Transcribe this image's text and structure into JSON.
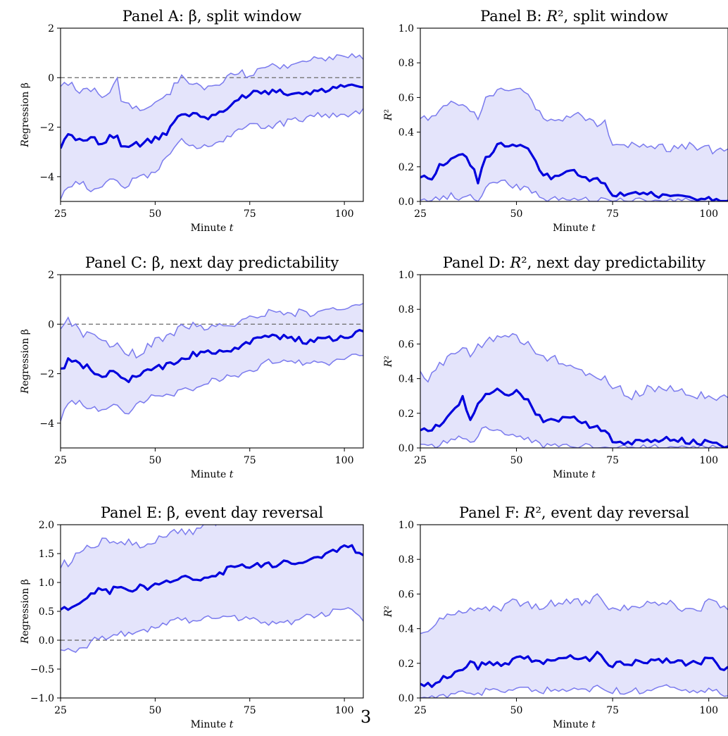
{
  "page_number": "3",
  "colors": {
    "mean_line": "#0000dd",
    "band_line": "#7a7aee",
    "band_fill": "#e4e4fb",
    "zero_line": "#777777"
  },
  "chart_data": [
    {
      "id": "A",
      "type": "line",
      "title": "Panel A: β, split window",
      "xlabel": "Minute t",
      "ylabel": "Regression β",
      "xlim": [
        25,
        105
      ],
      "ylim": [
        -5,
        2
      ],
      "xticks": [
        25,
        50,
        75,
        100
      ],
      "xtick_labels": [
        "25",
        "50",
        "75",
        "100"
      ],
      "yticks": [
        -4,
        -2,
        0,
        2
      ],
      "ytick_labels": [
        "−4",
        "−2",
        "0",
        "2"
      ],
      "zero_line": true,
      "knots": {
        "x": [
          25,
          27,
          30,
          33,
          36,
          38,
          40,
          41,
          45,
          50,
          53,
          57,
          60,
          65,
          70,
          75,
          80,
          85,
          90,
          95,
          100,
          105
        ],
        "mean": [
          -2.8,
          -2.3,
          -2.5,
          -2.4,
          -2.7,
          -2.3,
          -2.4,
          -2.8,
          -2.7,
          -2.5,
          -2.2,
          -1.5,
          -1.5,
          -1.6,
          -1.1,
          -0.6,
          -0.6,
          -0.6,
          -0.6,
          -0.5,
          -0.4,
          -0.3
        ],
        "upper": [
          -0.3,
          -0.2,
          -0.5,
          -0.4,
          -0.7,
          -0.5,
          0.0,
          -1.0,
          -1.3,
          -1.1,
          -0.8,
          0.1,
          -0.2,
          -0.4,
          0.2,
          0.1,
          0.5,
          0.4,
          0.7,
          0.8,
          0.8,
          0.9
        ],
        "lower": [
          -4.9,
          -4.3,
          -4.2,
          -4.5,
          -4.4,
          -4.1,
          -4.2,
          -4.5,
          -4.1,
          -3.8,
          -3.2,
          -2.6,
          -2.8,
          -2.8,
          -2.4,
          -1.8,
          -2.0,
          -1.8,
          -1.6,
          -1.5,
          -1.6,
          -1.3
        ]
      }
    },
    {
      "id": "B",
      "type": "line",
      "title": "Panel B: R², split window",
      "xlabel": "Minute t",
      "ylabel": "R²",
      "xlim": [
        25,
        105
      ],
      "ylim": [
        0,
        1
      ],
      "xticks": [
        25,
        50,
        75,
        100
      ],
      "xtick_labels": [
        "25",
        "50",
        "75",
        "100"
      ],
      "yticks": [
        0,
        0.2,
        0.4,
        0.6,
        0.8,
        1.0
      ],
      "ytick_labels": [
        "0.0",
        "0.2",
        "0.4",
        "0.6",
        "0.8",
        "1.0"
      ],
      "zero_line": false,
      "knots": {
        "x": [
          25,
          28,
          30,
          33,
          36,
          38,
          40,
          42,
          45,
          48,
          50,
          53,
          57,
          60,
          65,
          70,
          73,
          75,
          80,
          85,
          90,
          95,
          100,
          105
        ],
        "mean": [
          0.15,
          0.14,
          0.2,
          0.24,
          0.28,
          0.22,
          0.12,
          0.25,
          0.33,
          0.32,
          0.33,
          0.3,
          0.15,
          0.14,
          0.18,
          0.12,
          0.12,
          0.04,
          0.04,
          0.04,
          0.03,
          0.02,
          0.01,
          0.01
        ],
        "upper": [
          0.5,
          0.47,
          0.52,
          0.56,
          0.58,
          0.52,
          0.48,
          0.6,
          0.64,
          0.66,
          0.64,
          0.61,
          0.48,
          0.46,
          0.5,
          0.45,
          0.46,
          0.35,
          0.32,
          0.32,
          0.3,
          0.32,
          0.3,
          0.28
        ],
        "lower": [
          0.01,
          0.01,
          0.02,
          0.03,
          0.02,
          0.02,
          0.01,
          0.07,
          0.12,
          0.11,
          0.08,
          0.07,
          0.01,
          0.01,
          0.01,
          0.01,
          0.0,
          0.0,
          0.0,
          0.0,
          0.0,
          0.0,
          0.0,
          0.0
        ]
      }
    },
    {
      "id": "C",
      "type": "line",
      "title": "Panel C: β, next day predictability",
      "xlabel": "Minute t",
      "ylabel": "Regression β",
      "xlim": [
        25,
        105
      ],
      "ylim": [
        -5,
        2
      ],
      "xticks": [
        25,
        50,
        75,
        100
      ],
      "xtick_labels": [
        "25",
        "50",
        "75",
        "100"
      ],
      "yticks": [
        -4,
        -2,
        0,
        2
      ],
      "ytick_labels": [
        "−4",
        "−2",
        "0",
        "2"
      ],
      "zero_line": true,
      "knots": {
        "x": [
          25,
          27,
          30,
          33,
          36,
          38,
          40,
          42,
          45,
          50,
          55,
          60,
          65,
          70,
          75,
          80,
          85,
          90,
          95,
          100,
          105
        ],
        "mean": [
          -1.9,
          -1.5,
          -1.6,
          -1.8,
          -2.1,
          -1.9,
          -2.0,
          -2.3,
          -2.1,
          -1.8,
          -1.6,
          -1.2,
          -1.1,
          -1.0,
          -0.7,
          -0.5,
          -0.5,
          -0.7,
          -0.6,
          -0.5,
          -0.3
        ],
        "upper": [
          -0.1,
          0.2,
          -0.3,
          -0.5,
          -0.6,
          -0.8,
          -0.9,
          -1.1,
          -1.2,
          -0.7,
          -0.3,
          0.0,
          -0.2,
          0.0,
          0.3,
          0.5,
          0.5,
          0.4,
          0.5,
          0.6,
          0.7
        ],
        "lower": [
          -3.9,
          -3.1,
          -3.2,
          -3.4,
          -3.5,
          -3.3,
          -3.4,
          -3.6,
          -3.3,
          -2.9,
          -2.8,
          -2.6,
          -2.3,
          -2.1,
          -1.9,
          -1.5,
          -1.4,
          -1.6,
          -1.6,
          -1.4,
          -1.2
        ]
      }
    },
    {
      "id": "D",
      "type": "line",
      "title": "Panel D: R², next day predictability",
      "xlabel": "Minute t",
      "ylabel": "R²",
      "xlim": [
        25,
        105
      ],
      "ylim": [
        0,
        1
      ],
      "xticks": [
        25,
        50,
        75,
        100
      ],
      "xtick_labels": [
        "25",
        "50",
        "75",
        "100"
      ],
      "yticks": [
        0,
        0.2,
        0.4,
        0.6,
        0.8,
        1.0
      ],
      "ytick_labels": [
        "0.0",
        "0.2",
        "0.4",
        "0.6",
        "0.8",
        "1.0"
      ],
      "zero_line": false,
      "knots": {
        "x": [
          25,
          27,
          30,
          33,
          36,
          38,
          40,
          42,
          45,
          48,
          50,
          53,
          57,
          60,
          65,
          70,
          73,
          75,
          80,
          85,
          90,
          95,
          100,
          105
        ],
        "mean": [
          0.11,
          0.09,
          0.14,
          0.19,
          0.3,
          0.17,
          0.27,
          0.32,
          0.34,
          0.29,
          0.32,
          0.27,
          0.15,
          0.17,
          0.17,
          0.12,
          0.1,
          0.04,
          0.03,
          0.05,
          0.05,
          0.04,
          0.03,
          0.01
        ],
        "upper": [
          0.43,
          0.4,
          0.47,
          0.52,
          0.6,
          0.53,
          0.58,
          0.62,
          0.64,
          0.62,
          0.65,
          0.59,
          0.52,
          0.51,
          0.46,
          0.43,
          0.4,
          0.36,
          0.3,
          0.35,
          0.34,
          0.31,
          0.3,
          0.28
        ],
        "lower": [
          0.01,
          0.0,
          0.02,
          0.04,
          0.07,
          0.03,
          0.08,
          0.12,
          0.1,
          0.08,
          0.08,
          0.05,
          0.01,
          0.02,
          0.01,
          0.01,
          0.0,
          0.0,
          0.0,
          0.0,
          0.0,
          0.0,
          0.0,
          0.0
        ]
      }
    },
    {
      "id": "E",
      "type": "line",
      "title": "Panel E: β, event day reversal",
      "xlabel": "Minute t",
      "ylabel": "Regression β",
      "xlim": [
        25,
        105
      ],
      "ylim": [
        -1,
        2
      ],
      "xticks": [
        25,
        50,
        75,
        100
      ],
      "xtick_labels": [
        "25",
        "50",
        "75",
        "100"
      ],
      "yticks": [
        -1.0,
        -0.5,
        0.0,
        0.5,
        1.0,
        1.5,
        2.0
      ],
      "ytick_labels": [
        "−1.0",
        "−0.5",
        "0.0",
        "0.5",
        "1.0",
        "1.5",
        "2.0"
      ],
      "zero_line": true,
      "knots": {
        "x": [
          25,
          27,
          29,
          31,
          33,
          35,
          38,
          40,
          43,
          46,
          48,
          50,
          53,
          57,
          60,
          63,
          66,
          70,
          75,
          80,
          85,
          90,
          95,
          98,
          101,
          103,
          105
        ],
        "mean": [
          0.52,
          0.55,
          0.6,
          0.7,
          0.78,
          0.88,
          0.85,
          0.9,
          0.87,
          0.95,
          0.88,
          0.95,
          1.0,
          1.1,
          1.05,
          1.1,
          1.12,
          1.25,
          1.3,
          1.3,
          1.35,
          1.4,
          1.45,
          1.55,
          1.65,
          1.55,
          1.52
        ],
        "upper": [
          1.28,
          1.35,
          1.45,
          1.55,
          1.62,
          1.68,
          1.72,
          1.7,
          1.68,
          1.6,
          1.62,
          1.7,
          1.8,
          1.9,
          1.85,
          2.05,
          2.05,
          2.2,
          2.3,
          2.3,
          2.35,
          2.4,
          2.45,
          2.5,
          2.6,
          2.55,
          2.5
        ],
        "lower": [
          -0.22,
          -0.2,
          -0.22,
          -0.12,
          -0.05,
          0.05,
          0.05,
          0.1,
          0.12,
          0.22,
          0.2,
          0.25,
          0.3,
          0.35,
          0.3,
          0.35,
          0.4,
          0.4,
          0.35,
          0.3,
          0.3,
          0.4,
          0.45,
          0.5,
          0.58,
          0.5,
          0.35
        ]
      }
    },
    {
      "id": "F",
      "type": "line",
      "title": "Panel F: R², event day reversal",
      "xlabel": "Minute t",
      "ylabel": "R²",
      "xlim": [
        25,
        105
      ],
      "ylim": [
        0,
        1
      ],
      "xticks": [
        25,
        50,
        75,
        100
      ],
      "xtick_labels": [
        "25",
        "50",
        "75",
        "100"
      ],
      "yticks": [
        0,
        0.2,
        0.4,
        0.6,
        0.8,
        1.0
      ],
      "ytick_labels": [
        "0.0",
        "0.2",
        "0.4",
        "0.6",
        "0.8",
        "1.0"
      ],
      "zero_line": false,
      "knots": {
        "x": [
          25,
          27,
          30,
          33,
          35,
          38,
          40,
          43,
          46,
          48,
          50,
          53,
          57,
          60,
          65,
          68,
          70,
          71,
          73,
          75,
          80,
          85,
          90,
          95,
          98,
          100,
          103,
          105
        ],
        "mean": [
          0.07,
          0.07,
          0.1,
          0.13,
          0.15,
          0.2,
          0.18,
          0.21,
          0.19,
          0.21,
          0.22,
          0.23,
          0.21,
          0.23,
          0.24,
          0.22,
          0.23,
          0.27,
          0.2,
          0.19,
          0.2,
          0.22,
          0.22,
          0.19,
          0.21,
          0.24,
          0.18,
          0.17
        ],
        "upper": [
          0.38,
          0.4,
          0.44,
          0.48,
          0.5,
          0.52,
          0.5,
          0.52,
          0.5,
          0.54,
          0.56,
          0.54,
          0.53,
          0.55,
          0.56,
          0.55,
          0.57,
          0.59,
          0.54,
          0.52,
          0.52,
          0.54,
          0.55,
          0.5,
          0.52,
          0.56,
          0.52,
          0.5
        ],
        "lower": [
          0.0,
          0.0,
          0.01,
          0.02,
          0.03,
          0.04,
          0.03,
          0.04,
          0.03,
          0.04,
          0.05,
          0.05,
          0.04,
          0.05,
          0.06,
          0.05,
          0.06,
          0.08,
          0.05,
          0.04,
          0.04,
          0.05,
          0.06,
          0.04,
          0.03,
          0.05,
          0.03,
          0.02
        ]
      }
    }
  ]
}
